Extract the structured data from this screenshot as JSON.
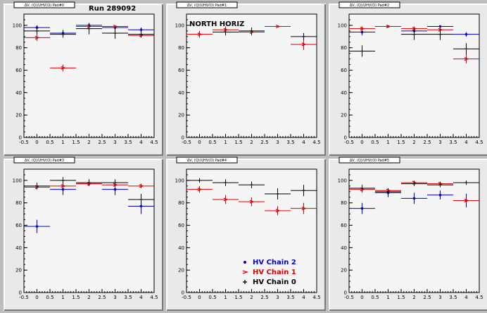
{
  "colors": {
    "HV Chain 2": "#0000cc",
    "HV Chain 1": "#e00000",
    "HV Chain 0": "#000000"
  },
  "chart_data": [
    {
      "type": "scatter",
      "pad_title": "ΔV, (Q)/UHV(O) Pad#0",
      "title": "Run 289092",
      "xlim": [
        -0.5,
        4.5
      ],
      "ylim": [
        0,
        110
      ],
      "xticks": [
        "-0.5",
        "0",
        "0.5",
        "1",
        "1.5",
        "2",
        "2.5",
        "3",
        "3.5",
        "4",
        "4.5"
      ],
      "yticks": [
        "0",
        "20",
        "40",
        "60",
        "80",
        "100"
      ],
      "series": [
        {
          "name": "HV Chain 2",
          "x": [
            0,
            1,
            2,
            3,
            4
          ],
          "y": [
            98,
            93,
            100,
            98,
            96
          ],
          "yerr": [
            2,
            3,
            1,
            2,
            2
          ]
        },
        {
          "name": "HV Chain 1",
          "x": [
            0,
            1,
            2,
            3,
            4
          ],
          "y": [
            89,
            62,
            99,
            99,
            91
          ],
          "yerr": [
            3,
            3,
            1,
            1,
            2
          ]
        },
        {
          "name": "HV Chain 0",
          "x": [
            0,
            1,
            2,
            3,
            4
          ],
          "y": [
            95,
            92,
            97,
            93,
            92
          ],
          "yerr": [
            3,
            3,
            5,
            5,
            3
          ]
        }
      ]
    },
    {
      "type": "scatter",
      "pad_title": "ΔV, (Q)/UHV(O) Pad#1",
      "annotation": "NORTH HORIZ",
      "xlim": [
        -0.5,
        4.5
      ],
      "ylim": [
        0,
        110
      ],
      "xticks": [
        "-0.5",
        "0",
        "0.5",
        "1",
        "1.5",
        "2",
        "2.5",
        "3",
        "3.5",
        "4",
        "4.5"
      ],
      "yticks": [
        "0",
        "20",
        "40",
        "60",
        "80",
        "100"
      ],
      "series": [
        {
          "name": "HV Chain 1",
          "x": [
            0,
            1,
            2,
            3,
            4
          ],
          "y": [
            92,
            96,
            94,
            99,
            83
          ],
          "yerr": [
            3,
            3,
            3,
            1,
            5
          ]
        },
        {
          "name": "HV Chain 0",
          "x": [
            1,
            2,
            4
          ],
          "y": [
            94,
            95,
            90
          ],
          "yerr": [
            3,
            3,
            3
          ]
        }
      ]
    },
    {
      "type": "scatter",
      "pad_title": "ΔV, (Q)/UHV(O) Pad#2",
      "xlim": [
        -0.5,
        4.5
      ],
      "ylim": [
        0,
        110
      ],
      "xticks": [
        "-0.5",
        "0",
        "0.5",
        "1",
        "1.5",
        "2",
        "2.5",
        "3",
        "3.5",
        "4",
        "4.5"
      ],
      "yticks": [
        "0",
        "20",
        "40",
        "60",
        "80",
        "100"
      ],
      "series": [
        {
          "name": "HV Chain 2",
          "x": [
            0,
            1,
            2,
            3,
            4
          ],
          "y": [
            94,
            99,
            95,
            99,
            92
          ],
          "yerr": [
            3,
            1,
            2,
            1,
            2
          ]
        },
        {
          "name": "HV Chain 1",
          "x": [
            0,
            1,
            2,
            3,
            4
          ],
          "y": [
            97,
            99,
            97,
            96,
            70
          ],
          "yerr": [
            2,
            1,
            2,
            3,
            4
          ]
        },
        {
          "name": "HV Chain 0",
          "x": [
            0,
            2,
            3,
            4
          ],
          "y": [
            77,
            92,
            92,
            79
          ],
          "yerr": [
            5,
            5,
            5,
            5
          ]
        }
      ]
    },
    {
      "type": "scatter",
      "pad_title": "ΔV, (Q)/UHV(O) Pad#3",
      "xlim": [
        -0.5,
        4.5
      ],
      "ylim": [
        0,
        110
      ],
      "xticks": [
        "-0.5",
        "0",
        "0.5",
        "1",
        "1.5",
        "2",
        "2.5",
        "3",
        "3.5",
        "4",
        "4.5"
      ],
      "yticks": [
        "0",
        "20",
        "40",
        "60",
        "80",
        "100"
      ],
      "series": [
        {
          "name": "HV Chain 2",
          "x": [
            0,
            1,
            2,
            3,
            4
          ],
          "y": [
            59,
            92,
            97,
            92,
            77
          ],
          "yerr": [
            6,
            5,
            2,
            5,
            7
          ]
        },
        {
          "name": "HV Chain 1",
          "x": [
            0,
            1,
            2,
            3,
            4
          ],
          "y": [
            94,
            95,
            97,
            96,
            95
          ],
          "yerr": [
            2,
            2,
            1,
            2,
            2
          ]
        },
        {
          "name": "HV Chain 0",
          "x": [
            0,
            1,
            2,
            3,
            4
          ],
          "y": [
            95,
            100,
            98,
            98,
            83
          ],
          "yerr": [
            3,
            3,
            3,
            3,
            5
          ]
        }
      ]
    },
    {
      "type": "scatter",
      "pad_title": "ΔV, (Q)/UHV(O) Pad#4",
      "xlim": [
        -0.5,
        4.5
      ],
      "ylim": [
        0,
        110
      ],
      "xticks": [
        "-0.5",
        "0",
        "0.5",
        "1",
        "1.5",
        "2",
        "2.5",
        "3",
        "3.5",
        "4",
        "4.5"
      ],
      "yticks": [
        "0",
        "20",
        "40",
        "60",
        "80",
        "100"
      ],
      "legend": [
        "HV Chain 2",
        "HV Chain 1",
        "HV Chain 0"
      ],
      "series": [
        {
          "name": "HV Chain 1",
          "x": [
            0,
            1,
            2,
            3,
            4
          ],
          "y": [
            92,
            83,
            81,
            73,
            75
          ],
          "yerr": [
            3,
            4,
            4,
            4,
            5
          ]
        },
        {
          "name": "HV Chain 0",
          "x": [
            0,
            1,
            2,
            3,
            4
          ],
          "y": [
            100,
            98,
            96,
            88,
            91
          ],
          "yerr": [
            2,
            3,
            3,
            5,
            5
          ]
        }
      ]
    },
    {
      "type": "scatter",
      "pad_title": "ΔV, (Q)/UHV(O) Pad#5",
      "xlim": [
        -0.5,
        4.5
      ],
      "ylim": [
        0,
        110
      ],
      "xticks": [
        "-0.5",
        "0",
        "0.5",
        "1",
        "1.5",
        "2",
        "2.5",
        "3",
        "3.5",
        "4",
        "4.5"
      ],
      "yticks": [
        "0",
        "20",
        "40",
        "60",
        "80",
        "100"
      ],
      "series": [
        {
          "name": "HV Chain 2",
          "x": [
            0,
            1,
            2,
            3,
            4
          ],
          "y": [
            75,
            89,
            84,
            87,
            82
          ],
          "yerr": [
            5,
            4,
            5,
            4,
            6
          ]
        },
        {
          "name": "HV Chain 1",
          "x": [
            0,
            1,
            2,
            3,
            4
          ],
          "y": [
            92,
            91,
            98,
            97,
            82
          ],
          "yerr": [
            3,
            2,
            2,
            2,
            2
          ]
        },
        {
          "name": "HV Chain 0",
          "x": [
            0,
            1,
            2,
            3,
            4
          ],
          "y": [
            93,
            90,
            97,
            96,
            98
          ],
          "yerr": [
            3,
            3,
            2,
            2,
            2
          ]
        }
      ]
    }
  ]
}
